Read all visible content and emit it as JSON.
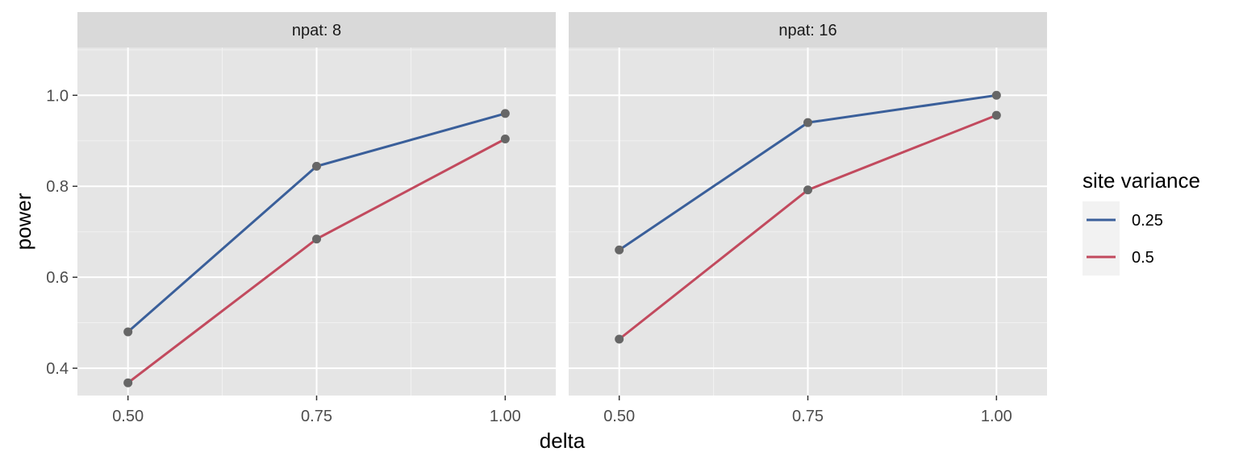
{
  "chart_data": {
    "type": "line",
    "xlabel": "delta",
    "ylabel": "power",
    "x": [
      0.5,
      0.75,
      1.0
    ],
    "x_tick_labels": [
      "0.50",
      "0.75",
      "1.00"
    ],
    "y_ticks": [
      0.4,
      0.6,
      0.8,
      1.0
    ],
    "y_tick_labels": [
      "0.4",
      "0.6",
      "0.8",
      "1.0"
    ],
    "xlim": [
      0.433,
      1.067
    ],
    "ylim": [
      0.34,
      1.105
    ],
    "grid": true,
    "point_color": "#666666",
    "legend": {
      "title": "site variance",
      "position": "right",
      "entries": [
        {
          "label": "0.25",
          "color": "#3A5F9A"
        },
        {
          "label": "0.5",
          "color": "#C24A5E"
        }
      ]
    },
    "panels": [
      {
        "strip": "npat: 8",
        "series": [
          {
            "name": "0.25",
            "color": "#3A5F9A",
            "values": [
              0.48,
              0.844,
              0.96
            ]
          },
          {
            "name": "0.5",
            "color": "#C24A5E",
            "values": [
              0.368,
              0.684,
              0.904
            ]
          }
        ]
      },
      {
        "strip": "npat: 16",
        "series": [
          {
            "name": "0.25",
            "color": "#3A5F9A",
            "values": [
              0.66,
              0.94,
              1.0
            ]
          },
          {
            "name": "0.5",
            "color": "#C24A5E",
            "values": [
              0.464,
              0.792,
              0.956
            ]
          }
        ]
      }
    ]
  }
}
